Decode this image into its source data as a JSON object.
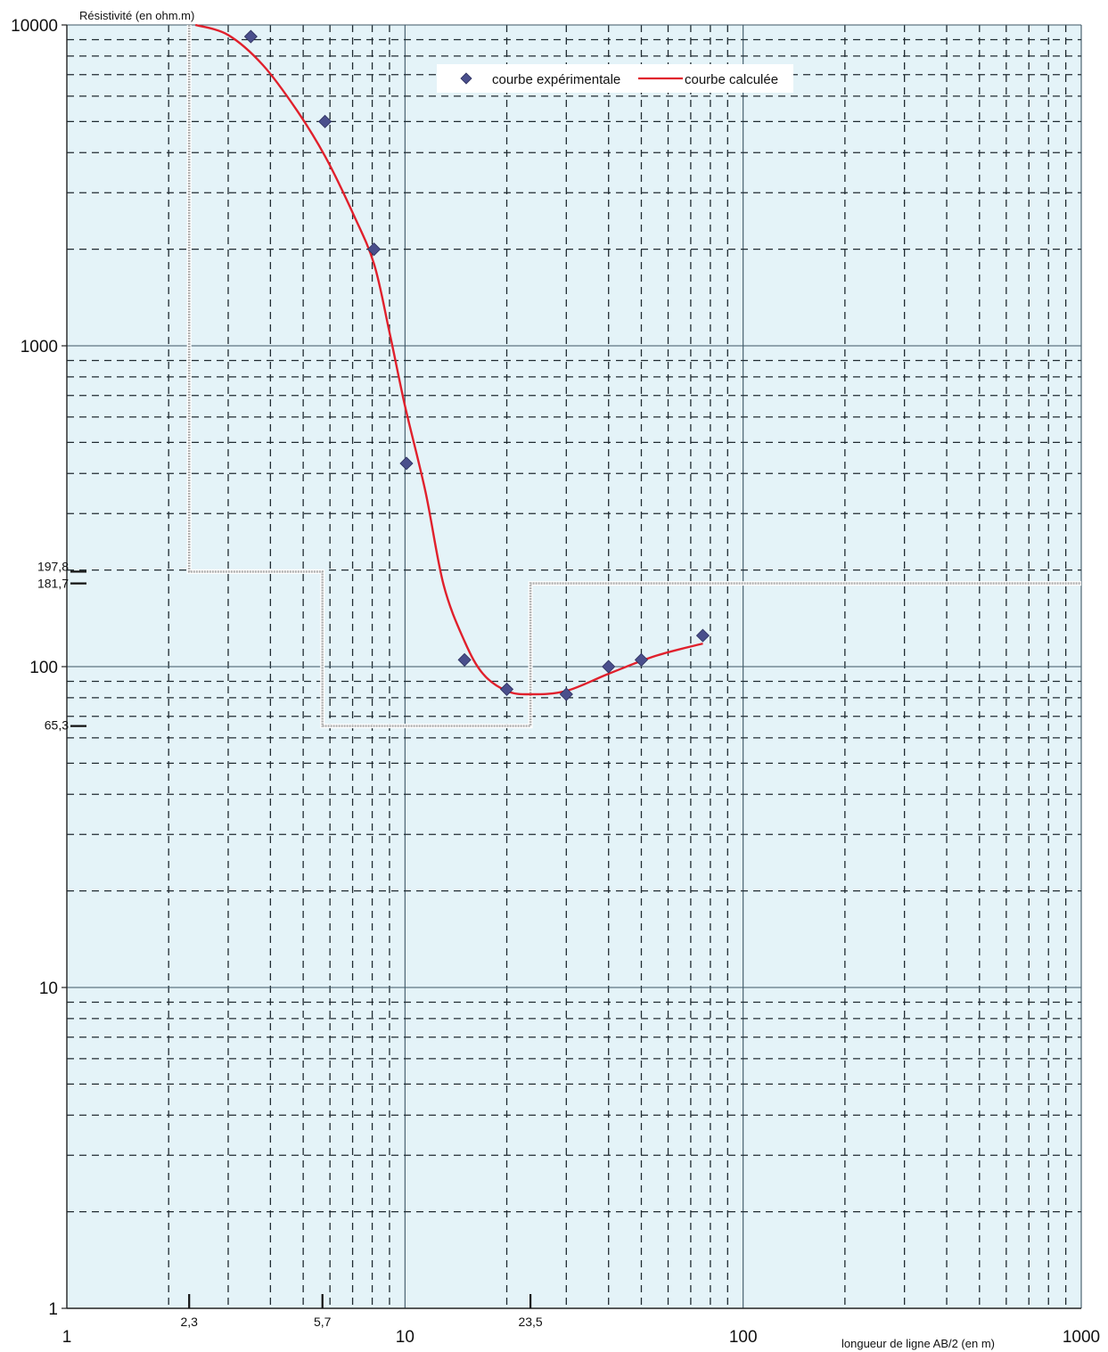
{
  "chart_data": {
    "type": "scatter",
    "log_x": true,
    "log_y": true,
    "xlim": [
      1,
      1000
    ],
    "ylim": [
      1,
      10000
    ],
    "ylabel": "Résistivité (en ohm.m)",
    "xlabel": "longueur de ligne AB/2 (en m)",
    "y_ticks": [
      {
        "value": 1,
        "label": "1"
      },
      {
        "value": 10,
        "label": "10"
      },
      {
        "value": 100,
        "label": "100"
      },
      {
        "value": 1000,
        "label": "1000"
      },
      {
        "value": 10000,
        "label": "10000"
      }
    ],
    "x_ticks": [
      {
        "value": 1,
        "label": "1"
      },
      {
        "value": 10,
        "label": "10"
      },
      {
        "value": 100,
        "label": "100"
      },
      {
        "value": 1000,
        "label": "1000"
      }
    ],
    "layer_ticks_x": [
      {
        "value": 2.3,
        "label": "2,3"
      },
      {
        "value": 5.7,
        "label": "5,7"
      },
      {
        "value": 23.5,
        "label": "23,5"
      }
    ],
    "layer_ticks_y": [
      {
        "value": 197.8,
        "label": "197,8"
      },
      {
        "value": 181.7,
        "label": "181,7"
      },
      {
        "value": 65.3,
        "label": "65,3"
      }
    ],
    "legend": {
      "position": "top-center"
    },
    "series": [
      {
        "name": "courbe expérimentale",
        "kind": "markers",
        "color": "#4a4f8c",
        "points": [
          [
            3.5,
            9200
          ],
          [
            5.8,
            5000
          ],
          [
            8.1,
            2000
          ],
          [
            10.1,
            430
          ],
          [
            15,
            105
          ],
          [
            20,
            85
          ],
          [
            30,
            82
          ],
          [
            40,
            100
          ],
          [
            50,
            105
          ],
          [
            76,
            125
          ]
        ]
      },
      {
        "name": "courbe calculée",
        "kind": "line",
        "color": "#e0202c",
        "points": [
          [
            2.4,
            10000
          ],
          [
            3.0,
            9300
          ],
          [
            3.8,
            7500
          ],
          [
            4.8,
            5400
          ],
          [
            5.8,
            3900
          ],
          [
            7.0,
            2600
          ],
          [
            8.1,
            1800
          ],
          [
            9.0,
            1100
          ],
          [
            10.0,
            650
          ],
          [
            11.5,
            350
          ],
          [
            13.0,
            180
          ],
          [
            15.0,
            120
          ],
          [
            17.0,
            95
          ],
          [
            20.0,
            84
          ],
          [
            23.5,
            82
          ],
          [
            30.0,
            84
          ],
          [
            40.0,
            95
          ],
          [
            55.0,
            108
          ],
          [
            76.0,
            118
          ]
        ]
      }
    ],
    "layer_model": {
      "color": "#b0b0b0",
      "points": [
        [
          2.3,
          10000
        ],
        [
          2.3,
          197.8
        ],
        [
          5.7,
          197.8
        ],
        [
          5.7,
          65.3
        ],
        [
          23.5,
          65.3
        ],
        [
          23.5,
          181.7
        ],
        [
          1000,
          181.7
        ]
      ]
    },
    "colors": {
      "background": "#e4f3f8",
      "grid_major": "#3c5664",
      "grid_minor": "#1f2a30"
    }
  }
}
